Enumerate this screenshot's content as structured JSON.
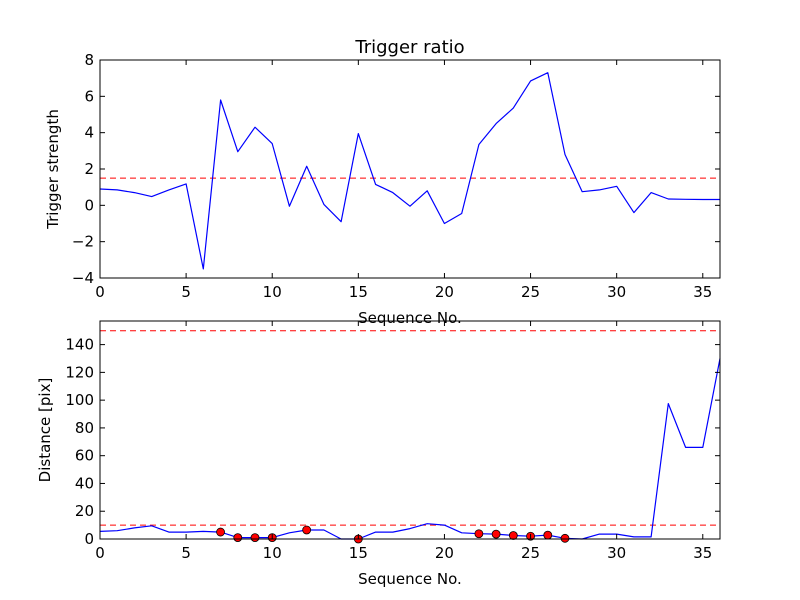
{
  "chart_data": [
    {
      "type": "line",
      "title": "Trigger ratio",
      "xlabel": "Sequence No.",
      "ylabel": "Trigger strength",
      "xlim": [
        0,
        36
      ],
      "ylim": [
        -4,
        8
      ],
      "xticks": [
        0,
        5,
        10,
        15,
        20,
        25,
        30,
        35
      ],
      "yticks": [
        -4,
        -2,
        0,
        2,
        4,
        6,
        8
      ],
      "grid": false,
      "line_color": "#0000ff",
      "threshold": {
        "value": 1.5,
        "color": "#ff0000",
        "style": "dashed"
      },
      "x": [
        0,
        1,
        2,
        3,
        4,
        5,
        6,
        7,
        8,
        9,
        10,
        11,
        12,
        13,
        14,
        15,
        16,
        17,
        18,
        19,
        20,
        21,
        22,
        23,
        24,
        25,
        26,
        27,
        28,
        29,
        30,
        31,
        32,
        33,
        34,
        35,
        36
      ],
      "y": [
        0.9,
        0.85,
        0.7,
        0.48,
        0.85,
        1.18,
        -3.5,
        5.8,
        2.95,
        4.3,
        3.4,
        -0.05,
        2.15,
        0.05,
        -0.9,
        3.95,
        1.15,
        0.7,
        -0.05,
        0.8,
        -1.0,
        -0.45,
        3.35,
        4.5,
        5.35,
        6.85,
        7.3,
        2.8,
        0.75,
        0.85,
        1.05,
        -0.4,
        0.7,
        0.35,
        0.33,
        0.32,
        0.32
      ]
    },
    {
      "type": "line",
      "title": "",
      "xlabel": "Sequence No.",
      "ylabel": "Distance [pix]",
      "xlim": [
        0,
        36
      ],
      "ylim": [
        0,
        157
      ],
      "xticks": [
        0,
        5,
        10,
        15,
        20,
        25,
        30,
        35
      ],
      "yticks": [
        0,
        20,
        40,
        60,
        80,
        100,
        120,
        140
      ],
      "grid": false,
      "line_color": "#0000ff",
      "marker_color": "#ff0000",
      "thresholds": [
        {
          "value": 10,
          "color": "#ff0000",
          "style": "dashed"
        },
        {
          "value": 150,
          "color": "#ff0000",
          "style": "dashed"
        }
      ],
      "x": [
        0,
        1,
        2,
        3,
        4,
        5,
        6,
        7,
        8,
        9,
        10,
        11,
        12,
        13,
        14,
        15,
        16,
        17,
        18,
        19,
        20,
        21,
        22,
        23,
        24,
        25,
        26,
        27,
        28,
        29,
        30,
        31,
        32,
        33,
        34,
        35,
        36
      ],
      "y": [
        5.5,
        6,
        8,
        9.5,
        5,
        5,
        5.5,
        5,
        1,
        1,
        1,
        4.5,
        6.5,
        6.5,
        0,
        0,
        5,
        5,
        7.5,
        11,
        10,
        4.5,
        3.8,
        3.5,
        2.5,
        2,
        2.8,
        0.5,
        0,
        3.5,
        3.5,
        1.5,
        1.5,
        97.5,
        66,
        66,
        130
      ],
      "markers": {
        "x": [
          7,
          8,
          9,
          10,
          12,
          15,
          22,
          23,
          24,
          25,
          26,
          27
        ],
        "y": [
          5,
          1,
          1,
          1,
          6.5,
          0,
          3.8,
          3.5,
          2.5,
          2,
          2.8,
          0.5
        ]
      }
    }
  ]
}
